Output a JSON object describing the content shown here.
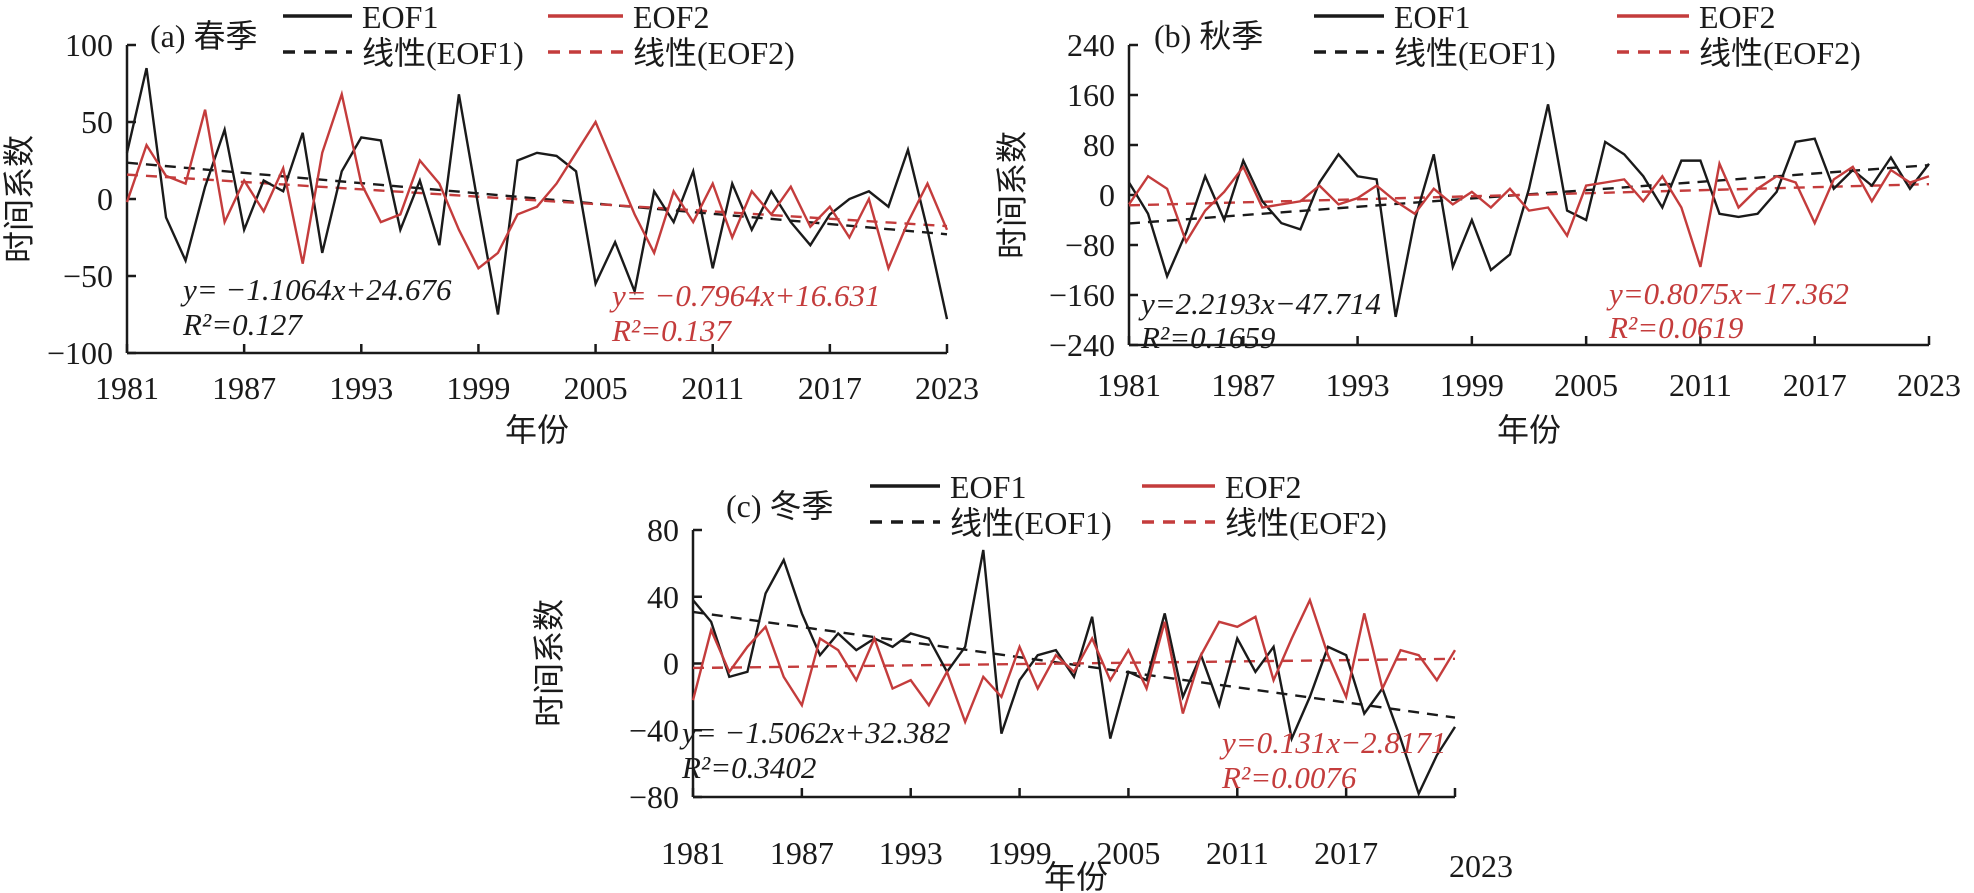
{
  "figure": {
    "colors": {
      "eof1": "#1a1a1a",
      "eof2": "#c43c3c"
    },
    "legend": [
      {
        "label": "EOF1"
      },
      {
        "label": "线性(EOF1)"
      },
      {
        "label": "EOF2"
      },
      {
        "label": "线性(EOF2)"
      }
    ]
  },
  "chart_data": [
    {
      "id": "a",
      "type": "line",
      "title": "(a) 春季",
      "xlabel": "年份",
      "ylabel": "时间系数",
      "x_range": [
        1981,
        2023
      ],
      "x_ticks": [
        1981,
        1987,
        1993,
        1999,
        2005,
        2011,
        2017,
        2023
      ],
      "y_ticks": [
        100,
        50,
        0,
        -50,
        -100
      ],
      "ylim": [
        -100,
        100
      ],
      "grid": false,
      "series": [
        {
          "name": "EOF1",
          "values": [
            30,
            85,
            -12,
            -40,
            8,
            45,
            -20,
            12,
            5,
            43,
            -35,
            18,
            40,
            38,
            -20,
            12,
            -30,
            68,
            -5,
            -75,
            25,
            30,
            28,
            18,
            -55,
            -28,
            -60,
            5,
            -15,
            18,
            -45,
            10,
            -20,
            5,
            -15,
            -30,
            -10,
            0,
            5,
            -5,
            32,
            -20,
            -78
          ]
        },
        {
          "name": "EOF2",
          "values": [
            -2,
            35,
            15,
            10,
            58,
            -15,
            12,
            -8,
            20,
            -42,
            30,
            68,
            10,
            -15,
            -10,
            25,
            10,
            -20,
            -45,
            -35,
            -10,
            -5,
            10,
            30,
            50,
            20,
            -10,
            -35,
            5,
            -15,
            10,
            -25,
            5,
            -10,
            8,
            -18,
            -5,
            -25,
            0,
            -45,
            -15,
            10,
            -20
          ]
        }
      ],
      "trends": [
        {
          "name": "线性(EOF1)",
          "slope": -1.1064,
          "intercept": 24.676
        },
        {
          "name": "线性(EOF2)",
          "slope": -0.7964,
          "intercept": 16.631
        }
      ],
      "equations": [
        {
          "text": "y= −1.1064x+24.676",
          "r2": "R²=0.127"
        },
        {
          "text": "y= −0.7964x+16.631",
          "r2": "R²=0.137"
        }
      ]
    },
    {
      "id": "b",
      "type": "line",
      "title": "(b) 秋季",
      "xlabel": "年份",
      "ylabel": "时间系数",
      "x_range": [
        1981,
        2023
      ],
      "x_ticks": [
        1981,
        1987,
        1993,
        1999,
        2005,
        2011,
        2017,
        2023
      ],
      "y_ticks": [
        240,
        160,
        80,
        0,
        -80,
        -160,
        -240
      ],
      "ylim": [
        -240,
        240
      ],
      "grid": false,
      "series": [
        {
          "name": "EOF1",
          "values": [
            20,
            -30,
            -130,
            -60,
            30,
            -40,
            55,
            -10,
            -45,
            -55,
            20,
            65,
            30,
            25,
            -195,
            -40,
            65,
            -115,
            -40,
            -120,
            -95,
            10,
            145,
            -25,
            -40,
            85,
            65,
            30,
            -20,
            55,
            55,
            -30,
            -35,
            -30,
            5,
            85,
            90,
            10,
            40,
            15,
            60,
            10,
            50
          ]
        },
        {
          "name": "EOF2",
          "values": [
            -15,
            30,
            10,
            -75,
            -25,
            5,
            45,
            -20,
            -15,
            -10,
            15,
            -15,
            -5,
            15,
            -10,
            -30,
            10,
            -15,
            5,
            -20,
            10,
            -25,
            -20,
            -65,
            15,
            20,
            25,
            -10,
            30,
            -20,
            -115,
            50,
            -20,
            10,
            30,
            20,
            -45,
            25,
            45,
            -10,
            40,
            20,
            30
          ]
        }
      ],
      "trends": [
        {
          "name": "线性(EOF1)",
          "slope": 2.2193,
          "intercept": -47.714
        },
        {
          "name": "线性(EOF2)",
          "slope": 0.8075,
          "intercept": -17.362
        }
      ],
      "equations": [
        {
          "text": "y=2.2193x−47.714",
          "r2": "R²=0.1659"
        },
        {
          "text": "y=0.8075x−17.362",
          "r2": "R²=0.0619"
        }
      ]
    },
    {
      "id": "c",
      "type": "line",
      "title": "(c) 冬季",
      "xlabel": "年份",
      "ylabel": "时间系数",
      "x_range": [
        1981,
        2023
      ],
      "x_ticks": [
        1981,
        1987,
        1993,
        1999,
        2005,
        2011,
        2017,
        2023
      ],
      "y_ticks": [
        80,
        40,
        0,
        -40,
        -80
      ],
      "ylim": [
        -80,
        80
      ],
      "grid": false,
      "series": [
        {
          "name": "EOF1",
          "values": [
            38,
            25,
            -8,
            -5,
            42,
            62,
            30,
            5,
            18,
            8,
            15,
            10,
            18,
            15,
            -5,
            10,
            68,
            -42,
            -10,
            5,
            8,
            -8,
            28,
            -45,
            -5,
            -10,
            30,
            -20,
            5,
            -25,
            15,
            -5,
            10,
            -45,
            -20,
            10,
            5,
            -30,
            -15,
            -45,
            -78,
            -55,
            -38
          ]
        },
        {
          "name": "EOF2",
          "values": [
            -22,
            20,
            -5,
            10,
            22,
            -8,
            -25,
            15,
            8,
            -10,
            15,
            -15,
            -10,
            -25,
            -5,
            -35,
            -8,
            -20,
            10,
            -15,
            5,
            -5,
            15,
            -10,
            8,
            -15,
            25,
            -30,
            5,
            25,
            22,
            28,
            -10,
            15,
            38,
            5,
            -20,
            30,
            -15,
            8,
            5,
            -10,
            8
          ]
        }
      ],
      "trends": [
        {
          "name": "线性(EOF1)",
          "slope": -1.5062,
          "intercept": 32.382
        },
        {
          "name": "线性(EOF2)",
          "slope": 0.131,
          "intercept": -2.8171
        }
      ],
      "equations": [
        {
          "text": "y= −1.5062x+32.382",
          "r2": "R²=0.3402"
        },
        {
          "text": "y=0.131x−2.8171",
          "r2": "R²=0.0076"
        }
      ]
    }
  ]
}
